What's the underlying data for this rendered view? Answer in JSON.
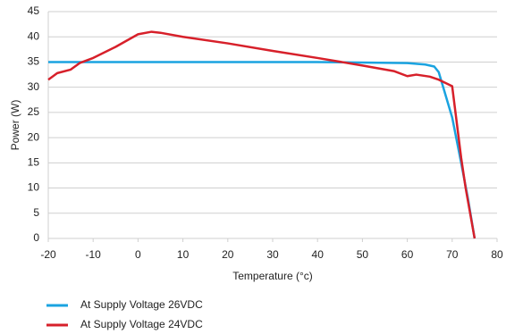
{
  "chart_data": {
    "type": "line",
    "xlabel": "Temperature (°c)",
    "ylabel": "Power (W)",
    "xlim": [
      -20,
      80
    ],
    "xticks": [
      -20,
      -10,
      0,
      10,
      20,
      30,
      40,
      50,
      60,
      70,
      80
    ],
    "ylim": [
      0,
      45
    ],
    "yticks": [
      0,
      5,
      10,
      15,
      20,
      25,
      30,
      35,
      40,
      45
    ],
    "grid": true,
    "series": [
      {
        "name": "At Supply Voltage 26VDC",
        "color": "#1aa3e0",
        "x": [
          -20,
          0,
          20,
          40,
          60,
          64,
          66,
          67,
          68,
          70,
          72,
          73.5,
          75
        ],
        "values": [
          35,
          35,
          35,
          35,
          34.8,
          34.5,
          34.1,
          33,
          30,
          24,
          15,
          8,
          0
        ]
      },
      {
        "name": "At Supply Voltage 24VDC",
        "color": "#d7202a",
        "x": [
          -20,
          -18,
          -15,
          -13,
          -10,
          -5,
          0,
          3,
          5,
          10,
          20,
          30,
          40,
          50,
          57,
          60,
          62,
          65,
          67,
          70,
          72,
          73,
          75
        ],
        "values": [
          31.5,
          32.8,
          33.5,
          34.8,
          35.8,
          38,
          40.5,
          41,
          40.8,
          40,
          38.7,
          37.2,
          35.8,
          34.3,
          33.2,
          32.2,
          32.5,
          32.1,
          31.5,
          30.2,
          16,
          10,
          0
        ]
      }
    ]
  }
}
